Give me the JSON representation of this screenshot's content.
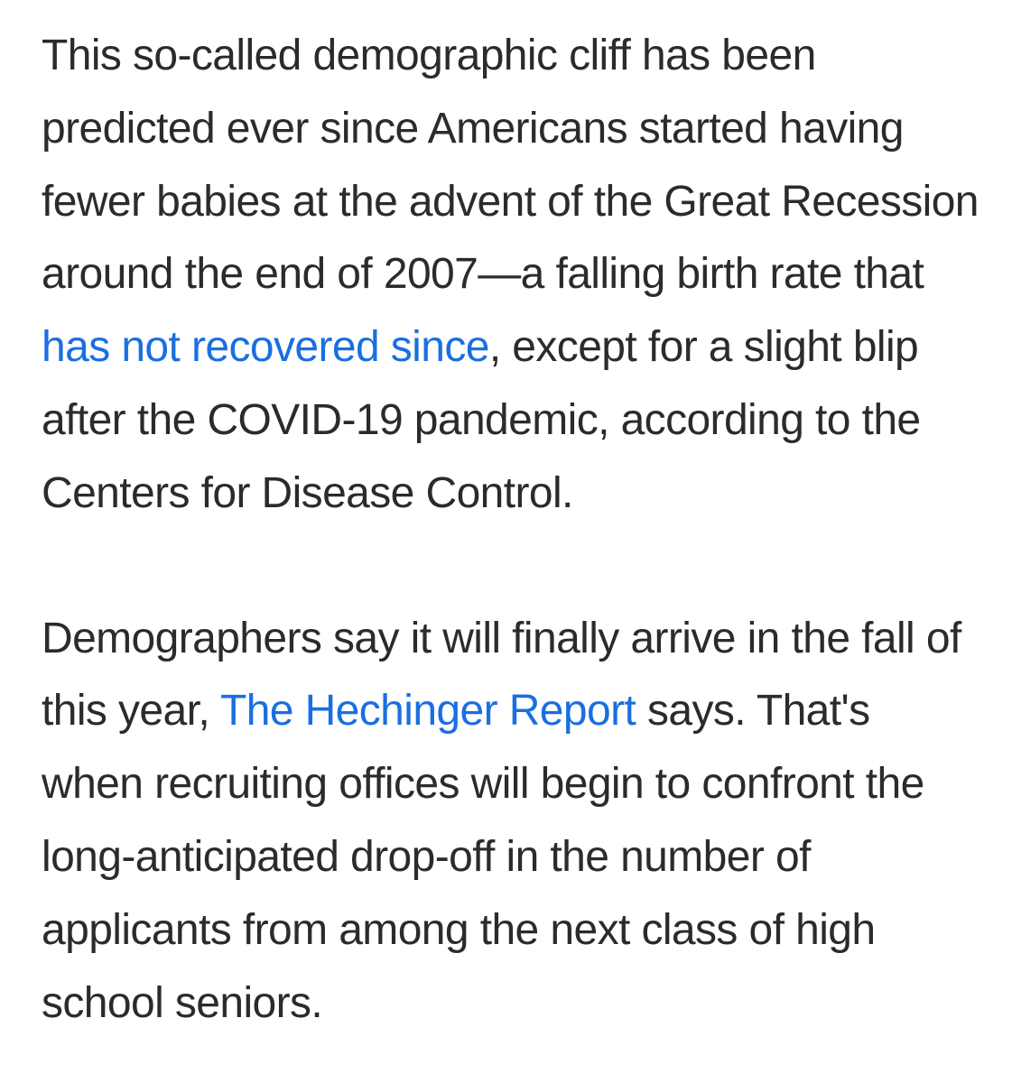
{
  "article": {
    "p1": {
      "text_before_link": "This so-called demographic cliff has been predicted ever since Americans started having fewer babies at the advent of the Great Recession around the end of 2007—a falling birth rate that ",
      "link": "has not recovered since",
      "text_after_link": ", except for a slight blip after the COVID-19 pandemic, according to the Centers for Disease Control."
    },
    "p2": {
      "text_before_link": "Demographers say it will finally arrive in the fall of this year, ",
      "link": "The Hechinger Report",
      "text_after_link": " says. That's when recruiting offices will begin to confront the long-anticipated drop-off in the number of applicants from among the next class of high school seniors."
    },
    "colors": {
      "text": "#2b2b2b",
      "link": "#1a6fe0",
      "background": "#ffffff"
    }
  }
}
